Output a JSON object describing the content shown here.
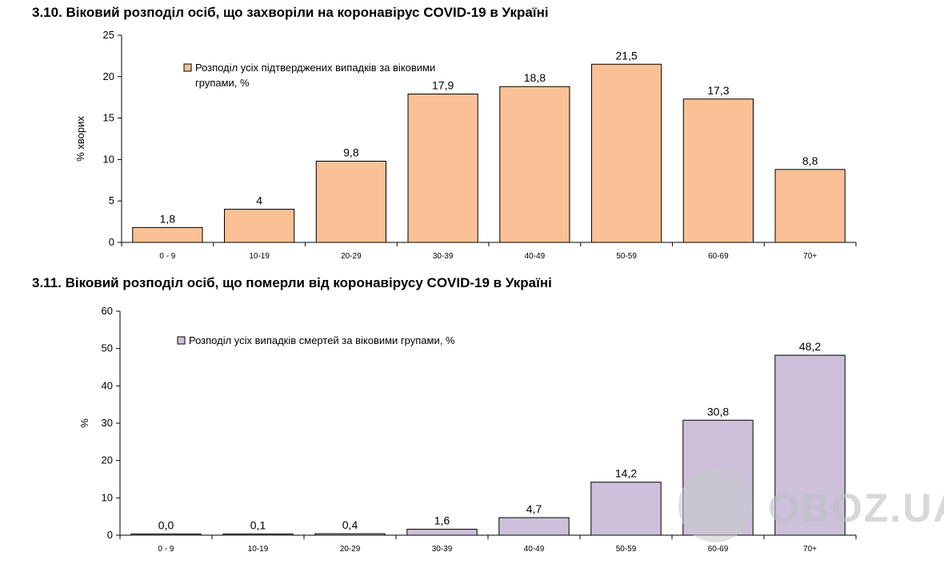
{
  "chart_data": [
    {
      "type": "bar",
      "title": "3.10.  Віковий розподіл осіб, що захворіли на коронавірус COVID-19 в Україні",
      "ylabel": "% хворих",
      "xlabel": "",
      "categories": [
        "0 - 9",
        "10-19",
        "20-29",
        "30-39",
        "40-49",
        "50-59",
        "60-69",
        "70+"
      ],
      "series": [
        {
          "name": "Розподіл усіх підтверджених випадків за віковими групами, %",
          "values": [
            1.8,
            4,
            9.8,
            17.9,
            18.8,
            21.5,
            17.3,
            8.8
          ],
          "labels": [
            "1,8",
            "4",
            "9,8",
            "17,9",
            "18,8",
            "21,5",
            "17,3",
            "8,8"
          ],
          "color": "#F9C195"
        }
      ],
      "legend_lines": [
        "Розподіл усіх підтверджених випадків за віковими",
        "групами, %"
      ],
      "ylim": [
        0,
        25
      ],
      "yticks": [
        0,
        5,
        10,
        15,
        20,
        25
      ],
      "grid": false,
      "legend_position": "top-left"
    },
    {
      "type": "bar",
      "title": "3.11.  Віковий розподіл осіб, що померли від коронавірусу COVID-19 в Україні",
      "ylabel": "%",
      "xlabel": "",
      "categories": [
        "0 - 9",
        "10-19",
        "20-29",
        "30-39",
        "40-49",
        "50-59",
        "60-69",
        "70+"
      ],
      "series": [
        {
          "name": "Розподіл усіх випадків смертей за віковими групами, %",
          "values": [
            0.0,
            0.1,
            0.4,
            1.6,
            4.7,
            14.2,
            30.8,
            48.2
          ],
          "labels": [
            "0,0",
            "0,1",
            "0,4",
            "1,6",
            "4,7",
            "14,2",
            "30,8",
            "48,2"
          ],
          "color": "#CCC0DA"
        }
      ],
      "legend_lines": [
        "Розподіл усіх випадків смертей за віковими групами, %"
      ],
      "ylim": [
        0,
        60
      ],
      "yticks": [
        0,
        10,
        20,
        30,
        40,
        50,
        60
      ],
      "grid": false,
      "legend_position": "top-left"
    }
  ],
  "watermark": {
    "text": "OBOZ.UA",
    "icon": "globe-icon"
  }
}
